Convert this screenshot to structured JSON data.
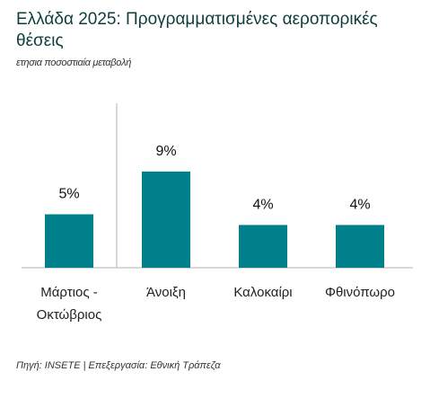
{
  "chart_data": {
    "type": "bar",
    "title": "Ελλάδα 2025: Προγραμματισμένες αεροπορικές θέσεις",
    "subtitle": "ετησια ποσοστιαία μεταβολή",
    "categories": [
      "Μάρτιος - Οκτώβριος",
      "Άνοιξη",
      "Καλοκαίρι",
      "Φθινόπωρο"
    ],
    "values": [
      5,
      9,
      4,
      4
    ],
    "value_labels": [
      "5%",
      "9%",
      "4%",
      "4%"
    ],
    "color": "#00808a",
    "source": "Πηγή: INSETE | Επεξεργασία: Εθνική Τράπεζα"
  }
}
